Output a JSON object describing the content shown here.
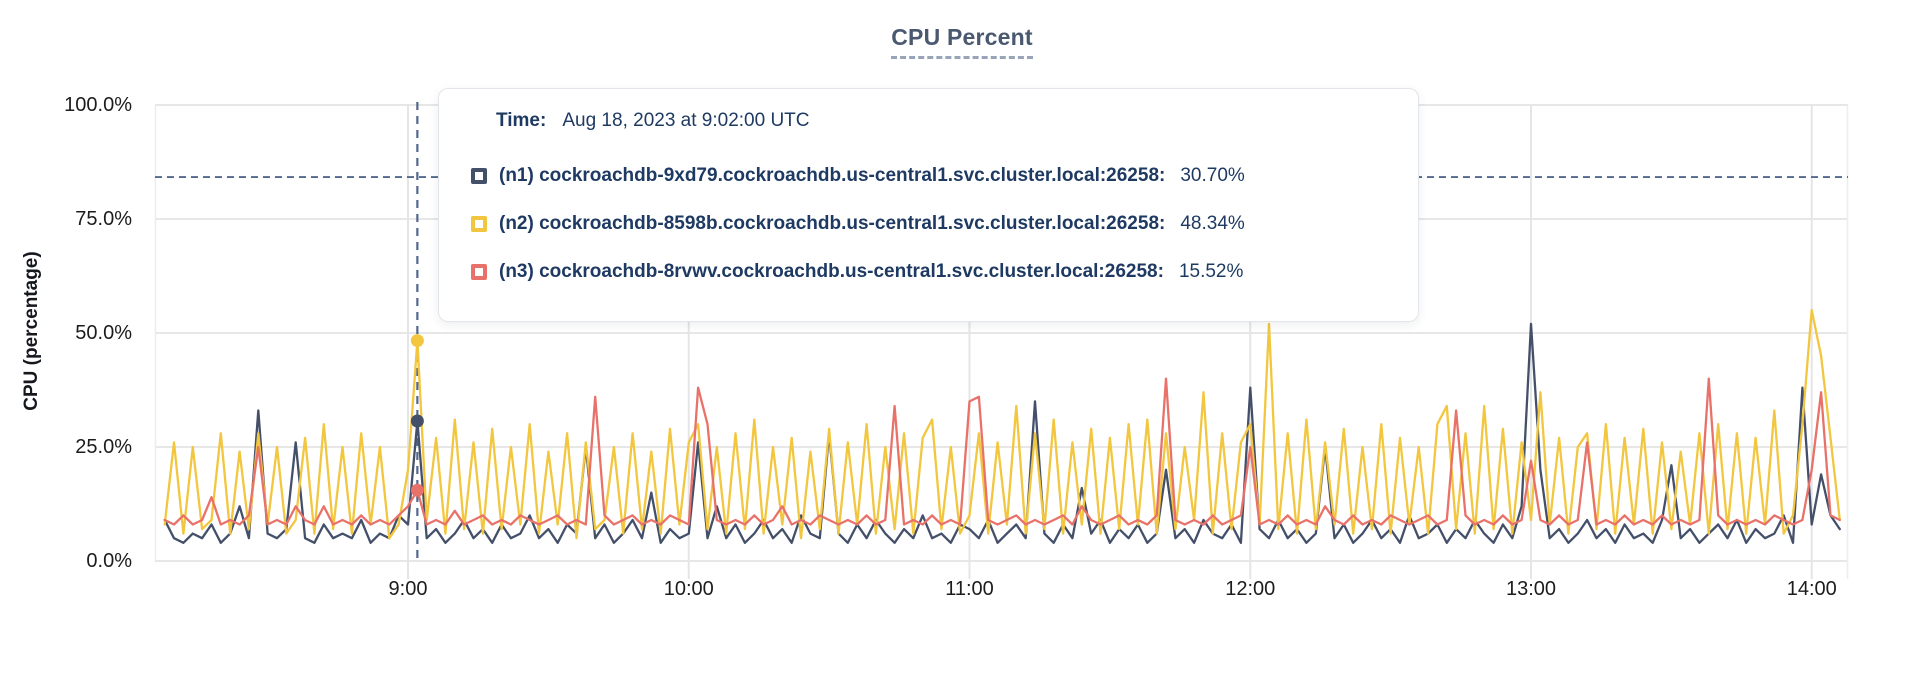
{
  "header": {
    "title": "CPU Percent"
  },
  "tooltip": {
    "time_label": "Time:",
    "time_value": "Aug 18, 2023 at 9:02:00 UTC",
    "series": [
      {
        "name": "(n1) cockroachdb-9xd79.cockroachdb.us-central1.svc.cluster.local:26258:",
        "value": "30.70%",
        "color": "#44506a"
      },
      {
        "name": "(n2) cockroachdb-8598b.cockroachdb.us-central1.svc.cluster.local:26258:",
        "value": "48.34%",
        "color": "#f2c63e"
      },
      {
        "name": "(n3) cockroachdb-8rvwv.cockroachdb.us-central1.svc.cluster.local:26258:",
        "value": "15.52%",
        "color": "#e8726a"
      }
    ]
  },
  "chart_data": {
    "type": "line",
    "title": "CPU Percent",
    "xlabel": "",
    "ylabel": "CPU (percentage)",
    "ylim": [
      0,
      100
    ],
    "grid": true,
    "y_ticks": [
      {
        "value": 100,
        "label": "100.0%"
      },
      {
        "value": 75,
        "label": "75.0%"
      },
      {
        "value": 50,
        "label": "50.0%"
      },
      {
        "value": 25,
        "label": "25.0%"
      },
      {
        "value": 0,
        "label": "0.0%"
      }
    ],
    "x_ticks": [
      {
        "hour": 9,
        "label": "9:00"
      },
      {
        "hour": 10,
        "label": "10:00"
      },
      {
        "hour": 11,
        "label": "11:00"
      },
      {
        "hour": 12,
        "label": "12:00"
      },
      {
        "hour": 13,
        "label": "13:00"
      },
      {
        "hour": 14,
        "label": "14:00"
      }
    ],
    "threshold_line": {
      "value_percent": 84.2,
      "style": "dashed",
      "color": "#53688c"
    },
    "hover": {
      "time": "9:02",
      "minutes": 542,
      "index": 27,
      "line_color": "#53688c"
    },
    "x_start_minutes": 488,
    "x_step_minutes": 2,
    "series": [
      {
        "id": "n1",
        "name": "(n1) cockroachdb-9xd79.cockroachdb.us-central1.svc.cluster.local:26258",
        "color": "#44506a",
        "hover_value_percent": 30.7,
        "values": [
          9,
          5,
          4,
          6,
          5,
          8,
          4,
          6,
          12,
          5,
          33,
          6,
          5,
          7,
          26,
          5,
          4,
          8,
          5,
          6,
          5,
          9,
          4,
          6,
          5,
          10,
          8,
          30.7,
          5,
          7,
          4,
          6,
          9,
          5,
          7,
          4,
          8,
          5,
          6,
          10,
          5,
          7,
          4,
          8,
          6,
          25,
          5,
          8,
          4,
          6,
          9,
          5,
          15,
          4,
          7,
          5,
          6,
          26,
          5,
          12,
          5,
          8,
          4,
          6,
          9,
          5,
          7,
          4,
          10,
          6,
          5,
          28,
          6,
          4,
          8,
          5,
          9,
          6,
          4,
          7,
          5,
          10,
          5,
          6,
          4,
          8,
          7,
          5,
          9,
          4,
          6,
          8,
          5,
          35,
          6,
          4,
          8,
          5,
          16,
          6,
          9,
          4,
          7,
          5,
          8,
          4,
          6,
          20,
          5,
          7,
          4,
          9,
          6,
          5,
          8,
          4,
          38,
          7,
          5,
          9,
          5,
          7,
          4,
          6,
          25,
          5,
          8,
          4,
          6,
          9,
          5,
          7,
          4,
          10,
          5,
          6,
          8,
          4,
          7,
          5,
          9,
          6,
          4,
          8,
          5,
          12,
          52,
          20,
          5,
          7,
          4,
          6,
          9,
          5,
          7,
          4,
          8,
          5,
          6,
          4,
          9,
          21,
          5,
          7,
          4,
          6,
          8,
          5,
          9,
          4,
          7,
          5,
          6,
          10,
          4,
          38,
          8,
          19,
          10,
          7
        ]
      },
      {
        "id": "n2",
        "name": "(n2) cockroachdb-8598b.cockroachdb.us-central1.svc.cluster.local:26258",
        "color": "#f2c63e",
        "hover_value_percent": 48.34,
        "values": [
          8,
          26,
          6,
          25,
          7,
          9,
          28,
          6,
          24,
          7,
          28,
          8,
          25,
          6,
          9,
          27,
          6,
          30,
          7,
          25,
          6,
          28,
          8,
          25,
          5,
          8,
          20,
          48.34,
          9,
          27,
          6,
          31,
          7,
          26,
          6,
          29,
          7,
          25,
          8,
          30,
          6,
          24,
          8,
          28,
          5,
          26,
          7,
          9,
          25,
          6,
          28,
          7,
          24,
          6,
          29,
          8,
          26,
          30,
          7,
          25,
          6,
          28,
          7,
          31,
          6,
          25,
          8,
          27,
          5,
          24,
          7,
          29,
          6,
          26,
          8,
          30,
          6,
          25,
          7,
          28,
          6,
          27,
          31,
          7,
          25,
          6,
          10,
          28,
          6,
          26,
          8,
          34,
          6,
          28,
          7,
          31,
          6,
          26,
          8,
          29,
          6,
          27,
          7,
          30,
          8,
          31,
          6,
          28,
          7,
          25,
          9,
          37,
          6,
          28,
          7,
          26,
          30,
          8,
          52,
          7,
          28,
          6,
          31,
          7,
          26,
          8,
          29,
          6,
          25,
          7,
          30,
          6,
          27,
          8,
          25,
          6,
          30,
          34,
          7,
          28,
          6,
          34,
          7,
          29,
          6,
          26,
          9,
          37,
          8,
          27,
          6,
          25,
          28,
          7,
          30,
          6,
          27,
          8,
          29,
          6,
          26,
          7,
          24,
          8,
          28,
          6,
          30,
          7,
          28,
          6,
          27,
          8,
          33,
          6,
          10,
          30,
          55,
          45,
          27,
          9
        ]
      },
      {
        "id": "n3",
        "name": "(n3) cockroachdb-8rvwv.cockroachdb.us-central1.svc.cluster.local:26258",
        "color": "#e8726a",
        "hover_value_percent": 15.52,
        "values": [
          9,
          8,
          10,
          8,
          9,
          14,
          8,
          9,
          8,
          10,
          25,
          8,
          9,
          8,
          12,
          9,
          8,
          12,
          8,
          9,
          8,
          10,
          8,
          9,
          8,
          10,
          12,
          15.52,
          8,
          9,
          8,
          11,
          8,
          9,
          10,
          8,
          9,
          8,
          10,
          9,
          8,
          9,
          10,
          8,
          9,
          8,
          36,
          10,
          8,
          9,
          10,
          8,
          9,
          8,
          10,
          9,
          8,
          38,
          30,
          9,
          8,
          9,
          8,
          10,
          8,
          9,
          12,
          8,
          9,
          8,
          10,
          9,
          8,
          9,
          8,
          10,
          8,
          9,
          34,
          8,
          9,
          8,
          10,
          8,
          9,
          8,
          35,
          36,
          9,
          8,
          9,
          10,
          8,
          9,
          8,
          9,
          10,
          8,
          12,
          9,
          8,
          9,
          10,
          8,
          9,
          8,
          10,
          40,
          9,
          8,
          9,
          8,
          10,
          8,
          9,
          10,
          25,
          8,
          9,
          8,
          10,
          8,
          9,
          8,
          12,
          9,
          8,
          10,
          8,
          9,
          8,
          10,
          9,
          8,
          9,
          10,
          8,
          9,
          33,
          10,
          8,
          9,
          8,
          10,
          8,
          9,
          22,
          9,
          8,
          10,
          8,
          9,
          26,
          8,
          9,
          8,
          10,
          8,
          9,
          8,
          10,
          8,
          9,
          8,
          9,
          40,
          10,
          8,
          9,
          8,
          9,
          8,
          10,
          9,
          8,
          9,
          20,
          37,
          10,
          9
        ]
      }
    ]
  }
}
